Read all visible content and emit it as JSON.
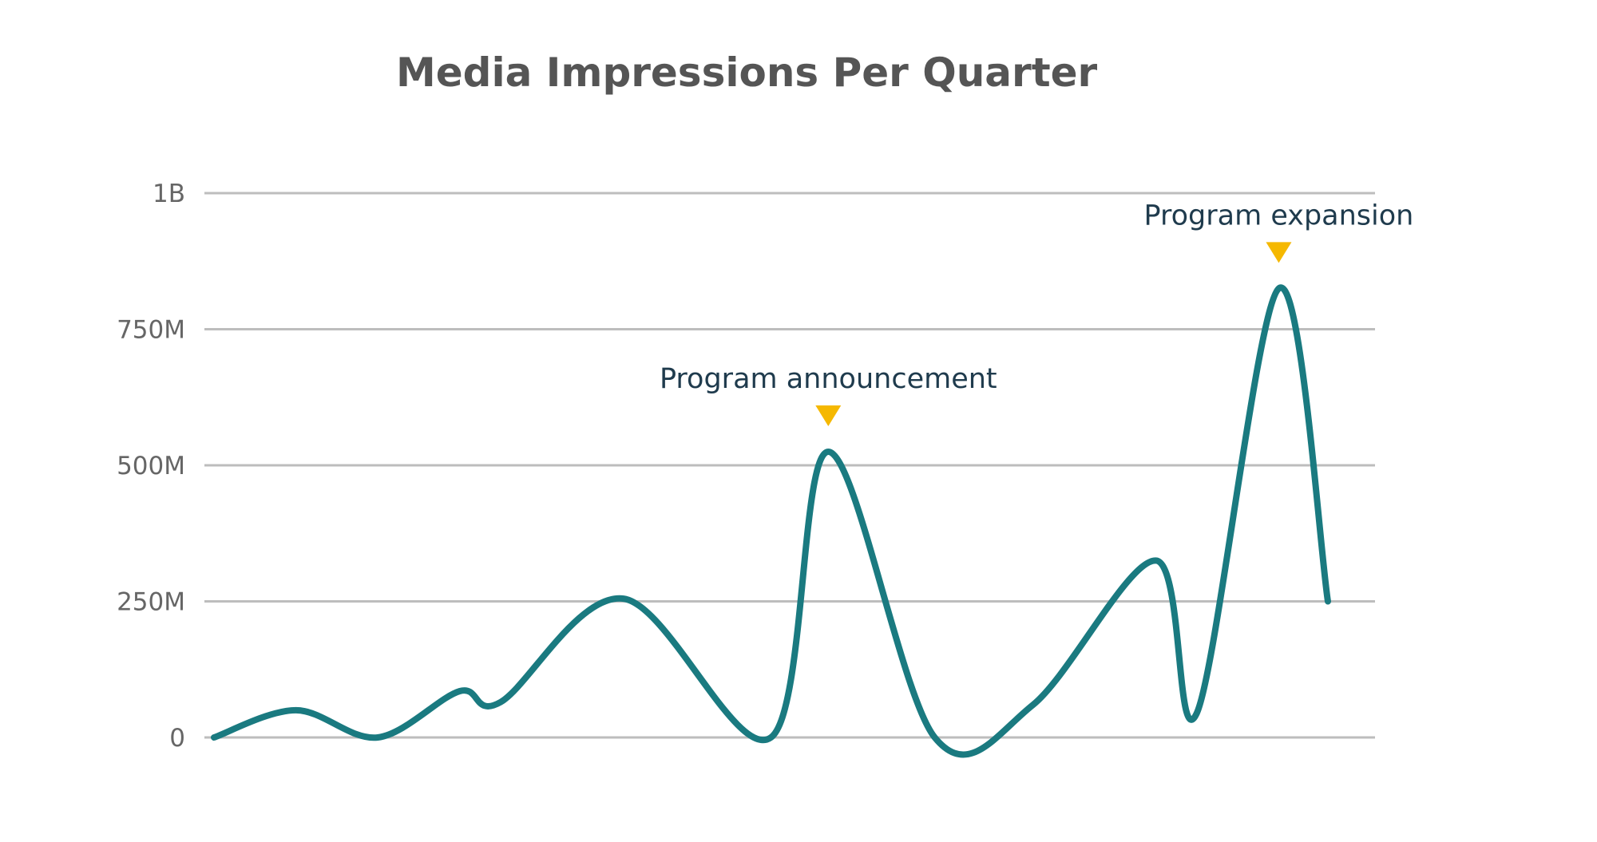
{
  "chart_data": {
    "type": "line",
    "title": "Media Impressions Per Quarter",
    "xlabel": "",
    "ylabel": "",
    "ylim": [
      0,
      1000000000
    ],
    "yticks": [
      {
        "value": 0,
        "label": "0"
      },
      {
        "value": 250000000,
        "label": "250M"
      },
      {
        "value": 500000000,
        "label": "500M"
      },
      {
        "value": 750000000,
        "label": "750M"
      },
      {
        "value": 1000000000,
        "label": "1B"
      }
    ],
    "grid": true,
    "legend": "none",
    "x": [
      1,
      2,
      3,
      4,
      5,
      6,
      7,
      8,
      9,
      10,
      11,
      12,
      13,
      14,
      15,
      16
    ],
    "series": [
      {
        "values": [
          0,
          50000000,
          0,
          85000000,
          65000000,
          255000000,
          0,
          525000000,
          0,
          60000000,
          325000000,
          45000000,
          825000000,
          250000000
        ],
        "x": [
          1,
          2,
          3,
          4,
          4.5,
          6,
          7.8,
          8.5,
          9.8,
          11,
          12.5,
          13,
          14,
          14.6
        ]
      }
    ],
    "annotations": [
      {
        "label": "Program announcement",
        "x": 8.5,
        "y": 525000000
      },
      {
        "label": "Program expansion",
        "x": 14,
        "y": 825000000
      }
    ],
    "colors": {
      "line": "#1a7a80",
      "marker": "#f5b800",
      "grid": "#bdbdbd"
    }
  }
}
